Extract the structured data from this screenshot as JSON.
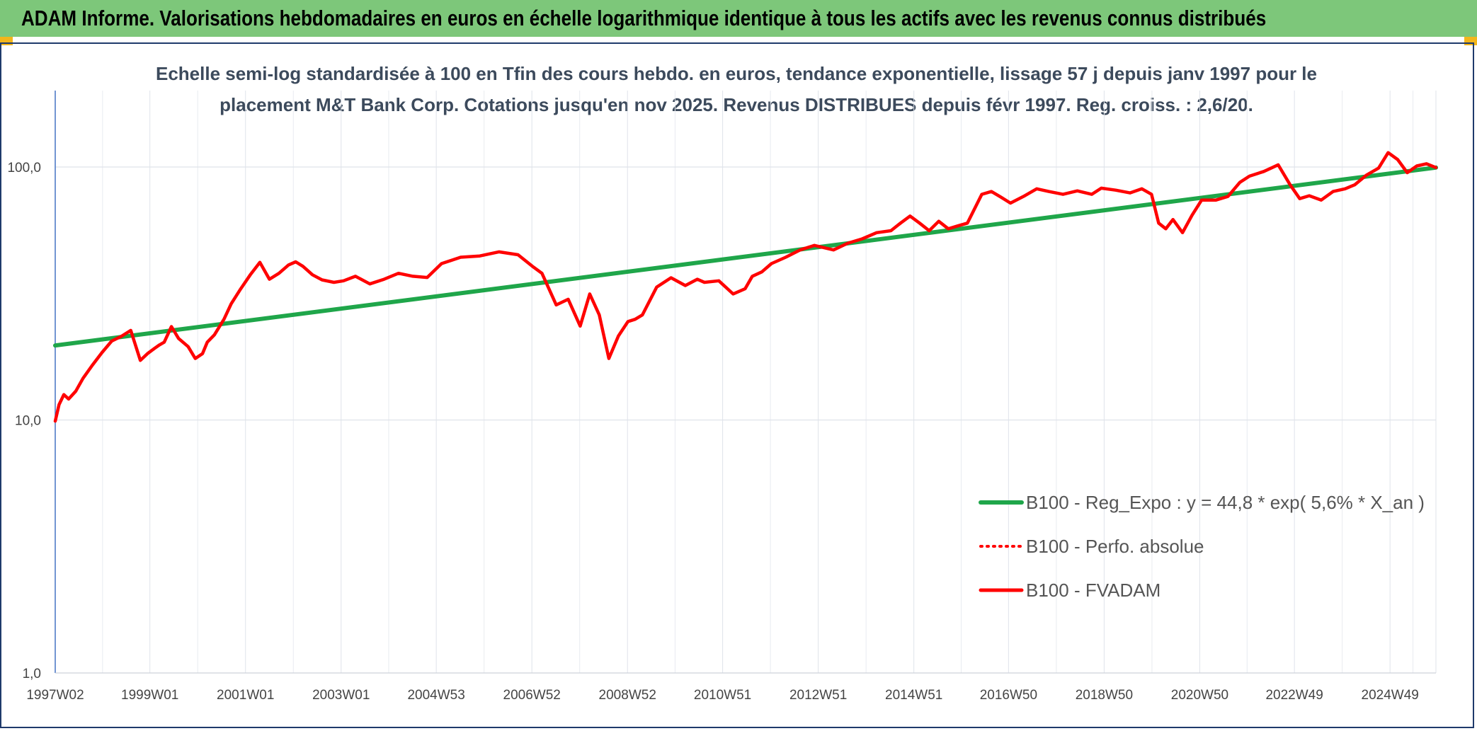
{
  "header": {
    "title": "ADAM Informe. Valorisations hebdomadaires en euros en échelle logarithmique identique à tous les actifs avec les revenus connus distribués",
    "bg_color": "#7dc77a",
    "corner_color": "#f2b61b"
  },
  "chart_data": {
    "type": "line",
    "title_line1": "Echelle semi-log standardisée à 100 en Tfin des cours hebdo. en euros, tendance exponentielle, lissage 57 j depuis janv 1997 pour le",
    "title_line2": "placement M&T Bank Corp. Cotations jusqu'en nov 2025. Revenus DISTRIBUES depuis févr 1997. Reg. croiss. : 2,6/20.",
    "y_scale": "log",
    "ylim": [
      1,
      100
    ],
    "y_ticks": [
      {
        "value": 1,
        "label": "1,0"
      },
      {
        "value": 10,
        "label": "10,0"
      },
      {
        "value": 100,
        "label": "100,0"
      }
    ],
    "xlim": [
      1997.02,
      2025.9
    ],
    "x_ticks": [
      {
        "x": 1997.02,
        "label": "1997W02"
      },
      {
        "x": 1999.0,
        "label": "1999W01"
      },
      {
        "x": 2001.0,
        "label": "2001W01"
      },
      {
        "x": 2003.0,
        "label": "2003W01"
      },
      {
        "x": 2004.99,
        "label": "2004W53"
      },
      {
        "x": 2006.99,
        "label": "2006W52"
      },
      {
        "x": 2008.99,
        "label": "2008W52"
      },
      {
        "x": 2010.98,
        "label": "2010W51"
      },
      {
        "x": 2012.98,
        "label": "2012W51"
      },
      {
        "x": 2014.98,
        "label": "2014W51"
      },
      {
        "x": 2016.96,
        "label": "2016W50"
      },
      {
        "x": 2018.96,
        "label": "2018W50"
      },
      {
        "x": 2020.96,
        "label": "2020W50"
      },
      {
        "x": 2022.94,
        "label": "2022W49"
      },
      {
        "x": 2024.94,
        "label": "2024W49"
      }
    ],
    "grid": true,
    "legend_position": "bottom-right",
    "series": [
      {
        "name": "B100 - Reg_Expo : y = 44,8 * exp( 5,6% *  X_an )",
        "color": "#1fa64a",
        "style": "solid",
        "x": [
          1997.02,
          2025.9
        ],
        "y": [
          19.7,
          99.5
        ]
      },
      {
        "name": "B100 - Perfo. absolue",
        "color": "#ff0000",
        "style": "dotted",
        "x": [],
        "y": []
      },
      {
        "name": "B100 - FVADAM",
        "color": "#ff0000",
        "style": "solid",
        "x": [
          1997.02,
          1997.1,
          1997.2,
          1997.3,
          1997.45,
          1997.6,
          1997.8,
          1998.0,
          1998.2,
          1998.4,
          1998.6,
          1998.8,
          1998.95,
          1999.1,
          1999.2,
          1999.3,
          1999.45,
          1999.6,
          1999.8,
          1999.95,
          2000.1,
          2000.2,
          2000.35,
          2000.55,
          2000.7,
          2000.9,
          2001.1,
          2001.3,
          2001.5,
          2001.7,
          2001.9,
          2002.05,
          2002.2,
          2002.4,
          2002.6,
          2002.85,
          2003.05,
          2003.3,
          2003.6,
          2003.9,
          2004.2,
          2004.5,
          2004.8,
          2005.1,
          2005.5,
          2005.9,
          2006.3,
          2006.7,
          2007.0,
          2007.2,
          2007.5,
          2007.75,
          2008.0,
          2008.2,
          2008.4,
          2008.6,
          2008.8,
          2009.0,
          2009.15,
          2009.3,
          2009.6,
          2009.9,
          2010.2,
          2010.45,
          2010.6,
          2010.9,
          2011.2,
          2011.45,
          2011.6,
          2011.8,
          2012.0,
          2012.3,
          2012.6,
          2012.9,
          2013.3,
          2013.6,
          2013.9,
          2014.2,
          2014.5,
          2014.7,
          2014.9,
          2015.1,
          2015.3,
          2015.5,
          2015.7,
          2015.9,
          2016.1,
          2016.4,
          2016.6,
          2016.8,
          2017.0,
          2017.3,
          2017.55,
          2017.8,
          2018.1,
          2018.4,
          2018.7,
          2018.9,
          2019.2,
          2019.5,
          2019.75,
          2019.95,
          2020.1,
          2020.25,
          2020.4,
          2020.6,
          2020.8,
          2021.0,
          2021.3,
          2021.55,
          2021.8,
          2022.0,
          2022.3,
          2022.6,
          2022.85,
          2023.05,
          2023.25,
          2023.5,
          2023.75,
          2024.0,
          2024.2,
          2024.45,
          2024.7,
          2024.9,
          2025.1,
          2025.3,
          2025.5,
          2025.7,
          2025.9
        ],
        "y": [
          9.9,
          11.5,
          12.6,
          12.1,
          13.0,
          14.6,
          16.5,
          18.5,
          20.5,
          21.4,
          22.6,
          17.2,
          18.3,
          19.2,
          19.8,
          20.3,
          23.4,
          21.0,
          19.5,
          17.5,
          18.3,
          20.3,
          21.7,
          25.0,
          28.8,
          33.0,
          37.5,
          42.0,
          36.0,
          38.0,
          41.0,
          42.2,
          40.5,
          37.5,
          35.8,
          35.0,
          35.5,
          37.0,
          34.5,
          36.0,
          38.0,
          37.0,
          36.6,
          41.5,
          44.0,
          44.5,
          46.2,
          45.0,
          40.5,
          38.0,
          28.5,
          30.0,
          23.5,
          31.5,
          26.0,
          17.5,
          21.5,
          24.5,
          25.0,
          26.0,
          33.5,
          36.5,
          34.0,
          36.0,
          35.0,
          35.5,
          31.5,
          33.0,
          37.0,
          38.5,
          41.5,
          44.0,
          47.0,
          49.0,
          47.0,
          50.0,
          52.0,
          55.0,
          56.0,
          60.0,
          64.0,
          60.0,
          56.0,
          61.0,
          57.0,
          58.5,
          60.0,
          78.0,
          80.0,
          76.0,
          72.0,
          77.0,
          82.0,
          80.0,
          78.0,
          80.5,
          78.0,
          82.5,
          81.0,
          79.0,
          82.0,
          78.0,
          60.0,
          57.0,
          62.0,
          55.0,
          64.5,
          74.0,
          74.0,
          76.5,
          87.0,
          92.0,
          96.0,
          102.0,
          85.0,
          75.0,
          77.0,
          74.0,
          80.0,
          82.0,
          85.0,
          93.0,
          99.0,
          114.0,
          107.0,
          95.0,
          101.0,
          103.0,
          99.5
        ]
      }
    ]
  }
}
